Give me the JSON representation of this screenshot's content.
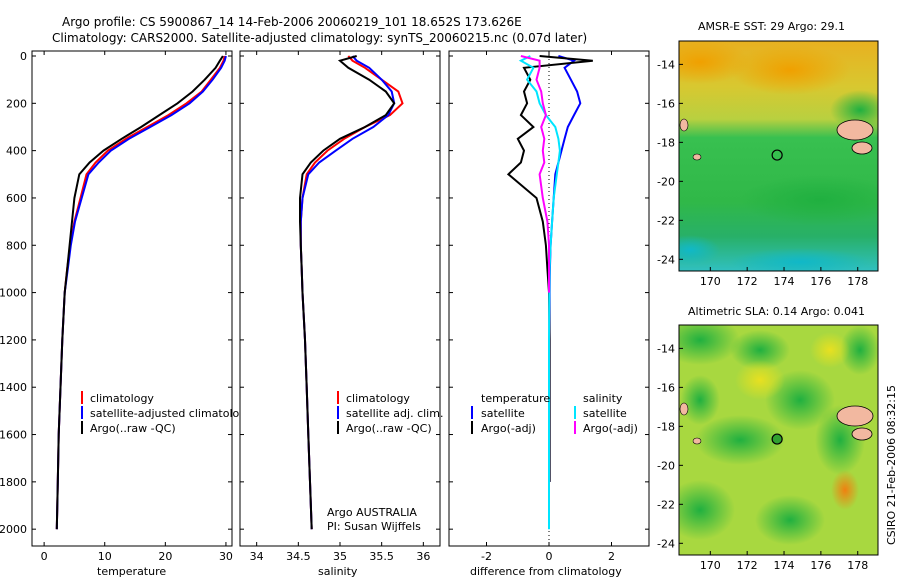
{
  "figure": {
    "title_line1": "Argo profile: CS 5900867_14 14-Feb-2006 20060219_101 18.652S 173.626E",
    "title_line2": "Climatology: CARS2000. Satellite-adjusted climatology: synTS_20060215.nc (0.07d later)",
    "side_stamp": "CSIRO 21-Feb-2006 08:32:15",
    "credit_line1": "Argo AUSTRALIA",
    "credit_line2": "PI: Susan Wijffels"
  },
  "chart_data": [
    {
      "type": "line",
      "panel": "temperature",
      "xlabel": "temperature",
      "xlim": [
        -2,
        31
      ],
      "xticks": [
        "0",
        "10",
        "20",
        "30"
      ],
      "xtick_values": [
        0,
        10,
        20,
        30
      ],
      "ylim": [
        0,
        2050
      ],
      "yticks": [
        "0",
        "200",
        "400",
        "600",
        "800",
        "1000",
        "1200",
        "1400",
        "1600",
        "1800",
        "2000"
      ],
      "ytick_values": [
        0,
        200,
        400,
        600,
        800,
        1000,
        1200,
        1400,
        1600,
        1800,
        2000
      ],
      "y_reversed": true,
      "legend": [
        "climatology",
        "satellite-adjusted climatology",
        "Argo(..raw -QC)"
      ],
      "series": [
        {
          "name": "climatology",
          "color": "#ff0000",
          "x": [
            29.8,
            29.6,
            29.0,
            27.5,
            26.0,
            23.5,
            20.5,
            17.0,
            13.5,
            10.5,
            8.5,
            7.0,
            6.0,
            5.0,
            4.3,
            3.8,
            3.4,
            3.0,
            2.7,
            2.4,
            2.25,
            2.1
          ],
          "y": [
            0,
            20,
            50,
            100,
            150,
            200,
            250,
            300,
            350,
            400,
            450,
            500,
            600,
            700,
            800,
            900,
            1000,
            1200,
            1400,
            1600,
            1800,
            2000
          ]
        },
        {
          "name": "satellite-adjusted climatology",
          "color": "#0000ff",
          "x": [
            30.0,
            29.8,
            29.2,
            27.8,
            26.2,
            24.0,
            21.0,
            17.5,
            14.0,
            11.0,
            9.0,
            7.3,
            6.2,
            5.1,
            4.4,
            3.9,
            3.4,
            3.0,
            2.7,
            2.4,
            2.25,
            2.1
          ],
          "y": [
            0,
            20,
            50,
            100,
            150,
            200,
            250,
            300,
            350,
            400,
            450,
            500,
            600,
            700,
            800,
            900,
            1000,
            1200,
            1400,
            1600,
            1800,
            2000
          ]
        },
        {
          "name": "Argo(..raw -QC)",
          "color": "#000000",
          "x": [
            29.5,
            29.0,
            28.3,
            26.5,
            24.5,
            22.0,
            19.0,
            16.0,
            12.8,
            9.8,
            7.5,
            5.8,
            5.0,
            4.6,
            4.2,
            3.8,
            3.4,
            3.0,
            2.7,
            2.4,
            2.25,
            2.1
          ],
          "y": [
            0,
            20,
            50,
            100,
            150,
            200,
            250,
            300,
            350,
            400,
            450,
            500,
            600,
            700,
            800,
            900,
            1000,
            1200,
            1400,
            1600,
            1800,
            2000
          ]
        }
      ]
    },
    {
      "type": "line",
      "panel": "salinity",
      "xlabel": "salinity",
      "xlim": [
        33.8,
        36.2
      ],
      "xticks": [
        "34",
        "34.5",
        "35",
        "35.5",
        "36"
      ],
      "xtick_values": [
        34,
        34.5,
        35,
        35.5,
        36
      ],
      "ylim": [
        0,
        2050
      ],
      "y_reversed": true,
      "legend": [
        "climatology",
        "satellite adj. clim.",
        "Argo(..raw -QC)"
      ],
      "series": [
        {
          "name": "climatology",
          "color": "#ff0000",
          "x": [
            35.1,
            35.15,
            35.3,
            35.5,
            35.7,
            35.75,
            35.6,
            35.3,
            35.05,
            34.85,
            34.7,
            34.6,
            34.55,
            34.53,
            34.53,
            34.54,
            34.55,
            34.58,
            34.6,
            34.62,
            34.64,
            34.66
          ],
          "y": [
            0,
            20,
            50,
            100,
            150,
            200,
            250,
            300,
            350,
            400,
            450,
            500,
            600,
            700,
            800,
            900,
            1000,
            1200,
            1400,
            1600,
            1800,
            2000
          ]
        },
        {
          "name": "satellite adj. clim.",
          "color": "#0000ff",
          "x": [
            35.15,
            35.2,
            35.35,
            35.5,
            35.62,
            35.65,
            35.58,
            35.4,
            35.15,
            34.95,
            34.75,
            34.62,
            34.55,
            34.53,
            34.53,
            34.54,
            34.55,
            34.58,
            34.6,
            34.62,
            34.64,
            34.66
          ],
          "y": [
            0,
            20,
            50,
            100,
            150,
            200,
            250,
            300,
            350,
            400,
            450,
            500,
            600,
            700,
            800,
            900,
            1000,
            1200,
            1400,
            1600,
            1800,
            2000
          ]
        },
        {
          "name": "Argo(..raw -QC)",
          "color": "#000000",
          "x": [
            35.2,
            35.0,
            35.1,
            35.35,
            35.55,
            35.65,
            35.55,
            35.3,
            35.0,
            34.8,
            34.65,
            34.55,
            34.52,
            34.52,
            34.53,
            34.54,
            34.55,
            34.58,
            34.6,
            34.62,
            34.64,
            34.66
          ],
          "y": [
            0,
            20,
            50,
            100,
            150,
            200,
            250,
            300,
            350,
            400,
            450,
            500,
            600,
            700,
            800,
            900,
            1000,
            1200,
            1400,
            1600,
            1800,
            2000
          ]
        }
      ]
    },
    {
      "type": "line",
      "panel": "difference",
      "xlabel": "difference from climatology",
      "xlim": [
        -3.2,
        3.2
      ],
      "xticks": [
        "-2",
        "0",
        "2"
      ],
      "xtick_values": [
        -2,
        0,
        2
      ],
      "ylim": [
        0,
        2050
      ],
      "y_reversed": true,
      "legend_temperature_header": "temperature",
      "legend_salinity_header": "salinity",
      "legend": [
        "satellite",
        "Argo(-adj)",
        "satellite",
        "Argo(-adj)"
      ],
      "series": [
        {
          "name": "temperature satellite",
          "color": "#0000ff",
          "x": [
            0.3,
            0.8,
            0.5,
            0.7,
            0.9,
            1.0,
            0.8,
            0.6,
            0.5,
            0.4,
            0.3,
            0.2,
            0.15,
            0.1,
            0.05,
            0.03,
            0.02,
            0.02,
            0.02,
            0.02,
            0.02
          ],
          "y": [
            0,
            20,
            50,
            100,
            150,
            200,
            250,
            300,
            350,
            400,
            450,
            500,
            600,
            700,
            800,
            900,
            1000,
            1200,
            1400,
            1600,
            1800
          ]
        },
        {
          "name": "temperature Argo(-adj)",
          "color": "#000000",
          "x": [
            -0.3,
            1.4,
            -0.8,
            -0.6,
            -0.8,
            -0.7,
            -0.9,
            -0.5,
            -1.0,
            -0.8,
            -0.9,
            -1.3,
            -0.4,
            -0.2,
            -0.1,
            -0.05,
            0,
            0.02,
            0.02,
            0.02,
            0.02
          ],
          "y": [
            0,
            20,
            50,
            100,
            150,
            200,
            250,
            300,
            350,
            400,
            450,
            500,
            600,
            700,
            800,
            900,
            1000,
            1200,
            1400,
            1600,
            1800
          ]
        },
        {
          "name": "salinity satellite",
          "color": "#00e5ff",
          "x": [
            -0.6,
            -0.9,
            -0.5,
            -0.7,
            -0.4,
            -0.3,
            -0.1,
            0.2,
            0.3,
            0.35,
            0.3,
            0.25,
            0.15,
            0.1,
            0.05,
            0.02,
            0.01,
            0,
            0,
            0,
            0,
            0
          ],
          "y": [
            0,
            20,
            50,
            100,
            150,
            200,
            250,
            300,
            350,
            400,
            450,
            500,
            600,
            700,
            800,
            900,
            1000,
            1200,
            1400,
            1600,
            1800,
            2000
          ]
        },
        {
          "name": "salinity Argo(-adj)",
          "color": "#ff00ff",
          "x": [
            -0.9,
            -0.3,
            -0.3,
            -0.4,
            -0.25,
            -0.2,
            -0.1,
            -0.25,
            -0.15,
            -0.2,
            -0.15,
            -0.3,
            -0.2,
            -0.05,
            0,
            0,
            0
          ],
          "y": [
            0,
            20,
            50,
            100,
            150,
            200,
            250,
            300,
            350,
            400,
            450,
            500,
            600,
            700,
            800,
            900,
            1000
          ]
        }
      ]
    },
    {
      "type": "heatmap",
      "panel": "sst-map",
      "title": "AMSR-E SST: 29 Argo: 29.1",
      "xlim": [
        168.3,
        179.1
      ],
      "ylim": [
        -24.6,
        -12.8
      ],
      "xticks": [
        "170",
        "172",
        "174",
        "176",
        "178"
      ],
      "xtick_values": [
        170,
        172,
        174,
        176,
        178
      ],
      "yticks": [
        "-14",
        "-16",
        "-18",
        "-20",
        "-22",
        "-24"
      ],
      "ytick_values": [
        -14,
        -16,
        -18,
        -20,
        -22,
        -24
      ],
      "float_position": [
        173.626,
        -18.652
      ]
    },
    {
      "type": "heatmap",
      "panel": "sla-map",
      "title": "Altimetric SLA: 0.14 Argo: 0.041",
      "xlim": [
        168.3,
        179.1
      ],
      "ylim": [
        -24.6,
        -12.8
      ],
      "xticks": [
        "170",
        "172",
        "174",
        "176",
        "178"
      ],
      "xtick_values": [
        170,
        172,
        174,
        176,
        178
      ],
      "yticks": [
        "-14",
        "-16",
        "-18",
        "-20",
        "-22",
        "-24"
      ],
      "ytick_values": [
        -14,
        -16,
        -18,
        -20,
        -22,
        -24
      ],
      "float_position": [
        173.626,
        -18.652
      ]
    }
  ]
}
